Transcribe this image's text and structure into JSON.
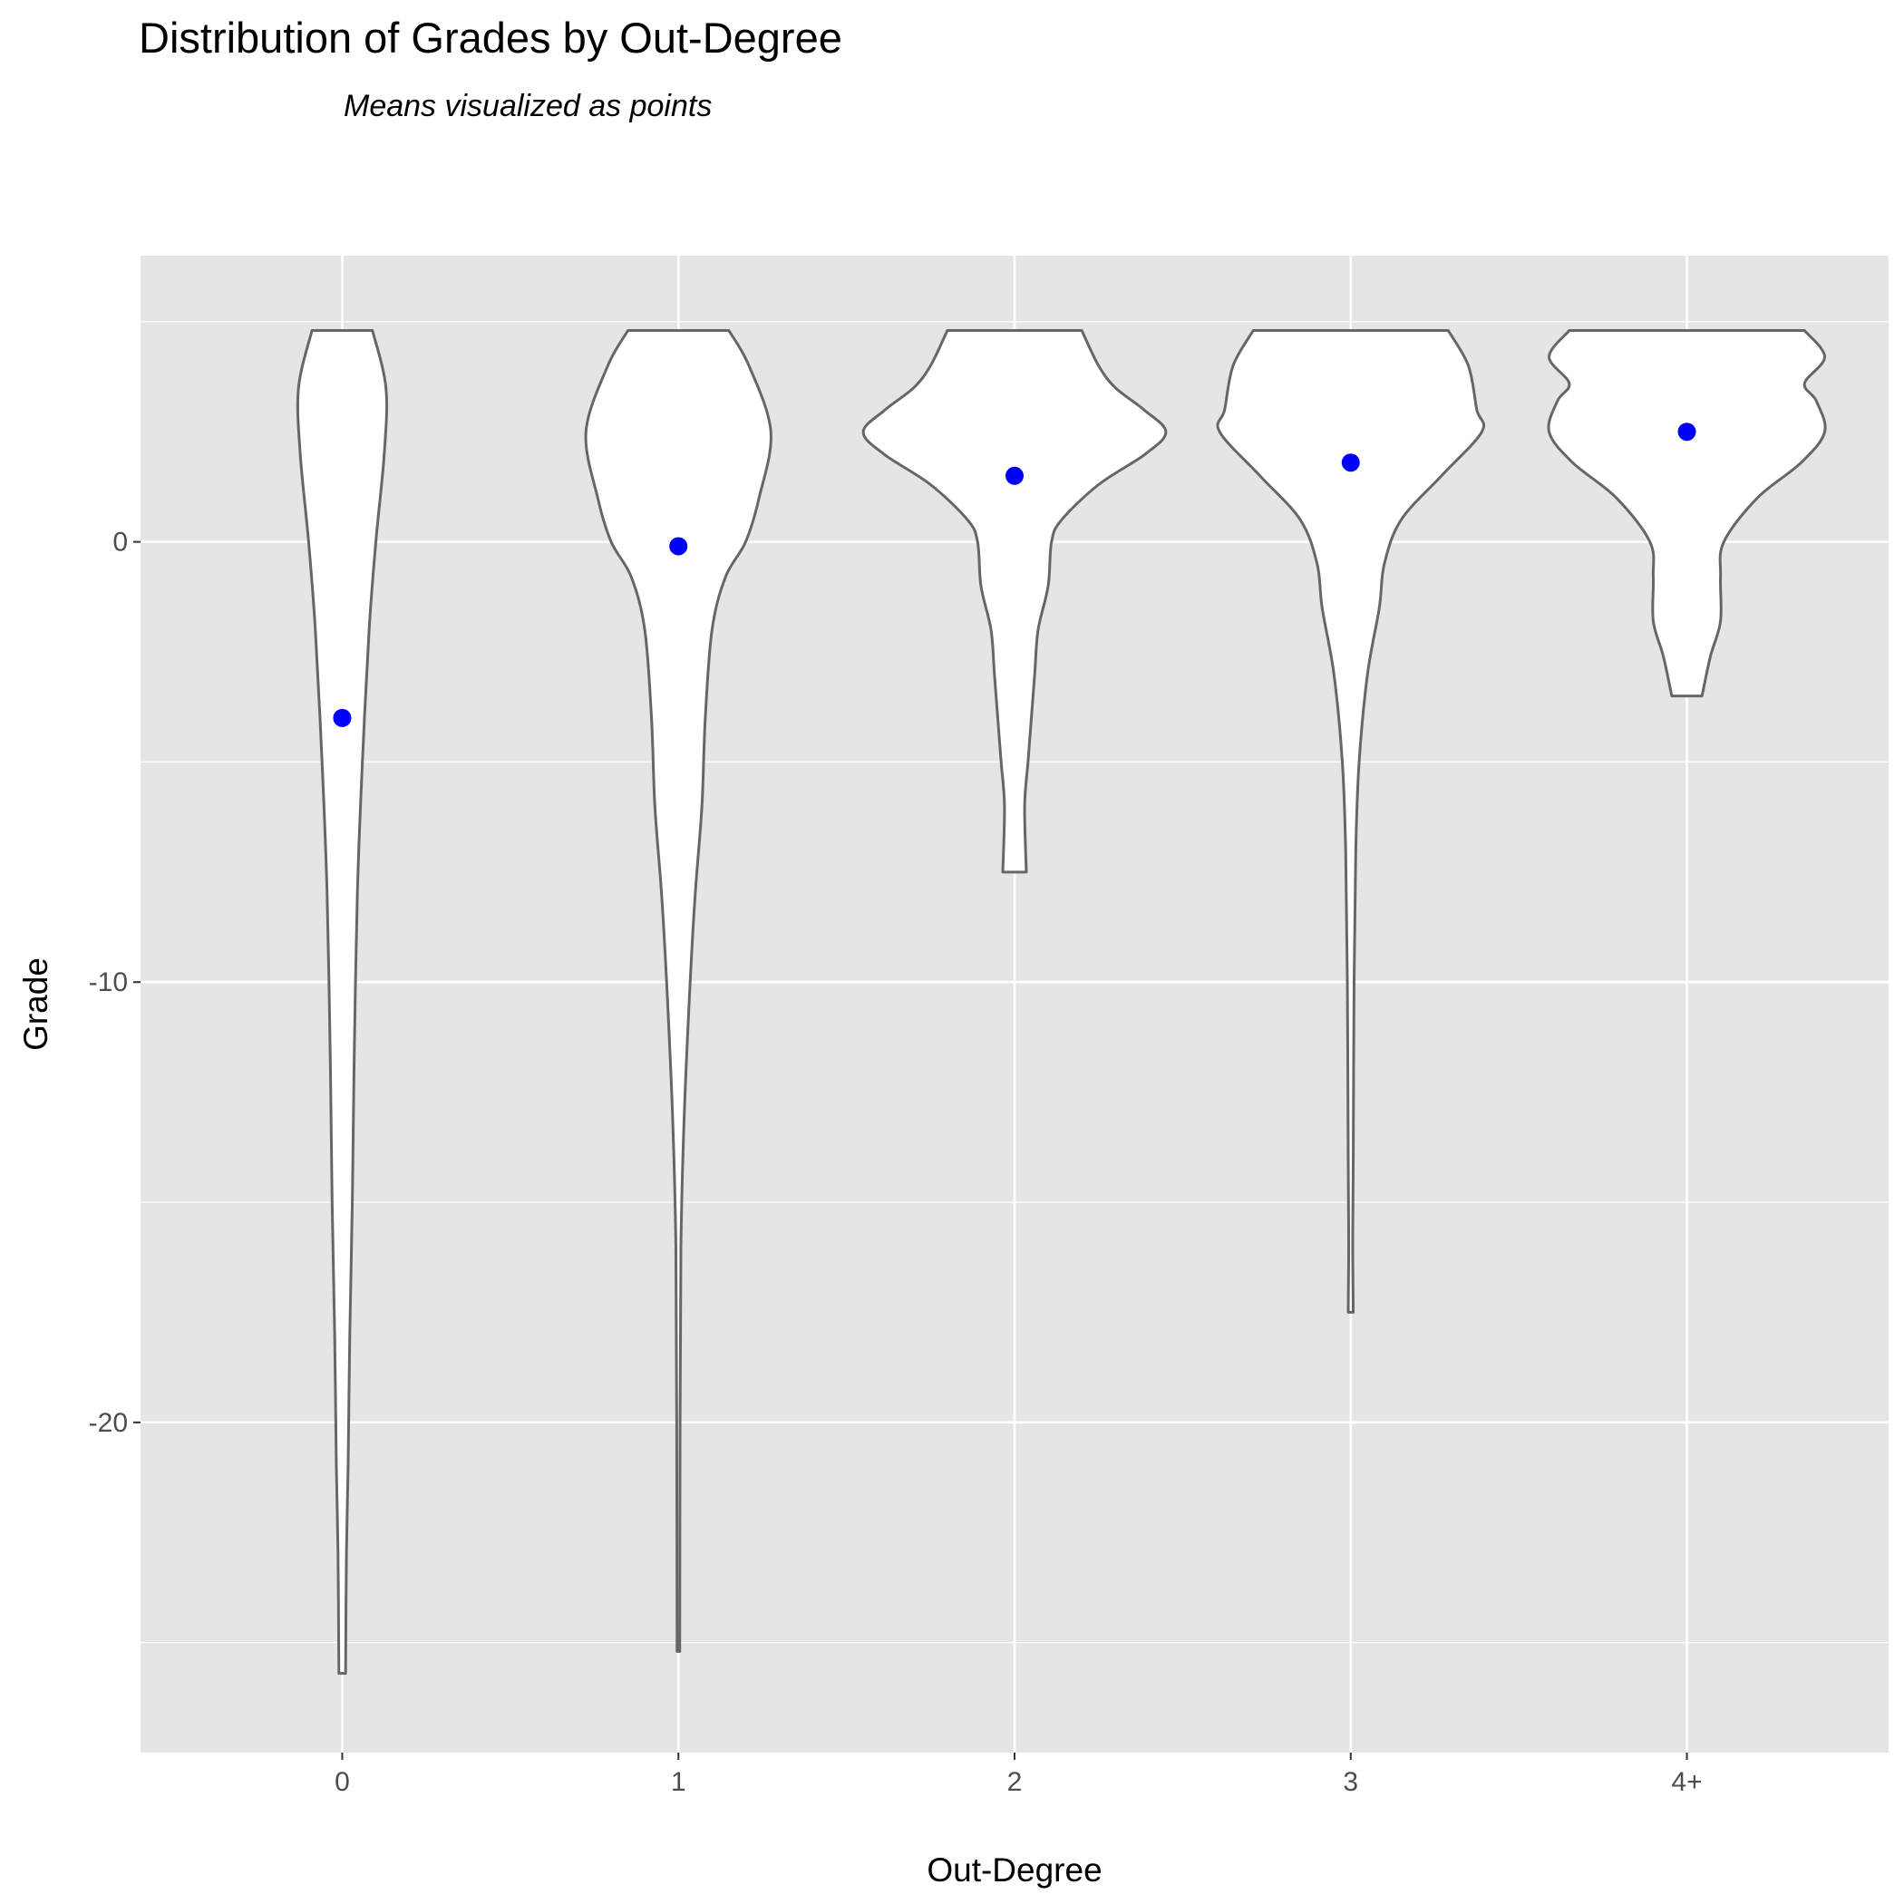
{
  "title": "Distribution of Grades by Out-Degree",
  "subtitle": "Means visualized as points",
  "chart_data": {
    "type": "violin",
    "title": "Distribution of Grades by Out-Degree",
    "subtitle": "Means visualized as points",
    "xlabel": "Out-Degree",
    "ylabel": "Grade",
    "categories": [
      "0",
      "1",
      "2",
      "3",
      "4+"
    ],
    "yticks": [
      0,
      -10,
      -20
    ],
    "ylim": [
      -27.5,
      6.5
    ],
    "grid": true,
    "background": "#e5e5e5",
    "violin_fill": "#ffffff",
    "violin_stroke": "#666666",
    "mean_color": "#0000ff",
    "means": [
      -4.0,
      -0.1,
      1.5,
      1.8,
      2.5
    ],
    "series": [
      {
        "category": "0",
        "y_min": -25.7,
        "y_max": 4.8,
        "mean": -4.0,
        "profile": [
          [
            4.8,
            0.18
          ],
          [
            3.5,
            0.26
          ],
          [
            2.0,
            0.25
          ],
          [
            0,
            0.2
          ],
          [
            -2,
            0.16
          ],
          [
            -5,
            0.12
          ],
          [
            -8,
            0.09
          ],
          [
            -12,
            0.07
          ],
          [
            -15,
            0.06
          ],
          [
            -18,
            0.045
          ],
          [
            -21,
            0.035
          ],
          [
            -23,
            0.025
          ],
          [
            -25.7,
            0.02
          ]
        ]
      },
      {
        "category": "1",
        "y_min": -25.2,
        "y_max": 4.8,
        "mean": -0.1,
        "profile": [
          [
            4.8,
            0.3
          ],
          [
            4.0,
            0.42
          ],
          [
            2.5,
            0.55
          ],
          [
            1.0,
            0.48
          ],
          [
            0,
            0.4
          ],
          [
            -0.8,
            0.28
          ],
          [
            -2,
            0.2
          ],
          [
            -4,
            0.16
          ],
          [
            -6,
            0.14
          ],
          [
            -8,
            0.1
          ],
          [
            -10,
            0.07
          ],
          [
            -13,
            0.035
          ],
          [
            -16,
            0.015
          ],
          [
            -20,
            0.01
          ],
          [
            -25.2,
            0.008
          ]
        ]
      },
      {
        "category": "2",
        "y_min": -7.5,
        "y_max": 4.8,
        "mean": 1.5,
        "profile": [
          [
            4.8,
            0.4
          ],
          [
            4.0,
            0.5
          ],
          [
            3.5,
            0.6
          ],
          [
            3.0,
            0.77
          ],
          [
            2.5,
            0.9
          ],
          [
            2.0,
            0.78
          ],
          [
            1.3,
            0.5
          ],
          [
            0.5,
            0.28
          ],
          [
            0,
            0.22
          ],
          [
            -1,
            0.2
          ],
          [
            -2,
            0.14
          ],
          [
            -3,
            0.12
          ],
          [
            -4,
            0.1
          ],
          [
            -5,
            0.08
          ],
          [
            -6,
            0.06
          ],
          [
            -7.5,
            0.07
          ]
        ]
      },
      {
        "category": "3",
        "y_min": -17.5,
        "y_max": 4.8,
        "mean": 1.8,
        "profile": [
          [
            4.8,
            0.58
          ],
          [
            4.0,
            0.7
          ],
          [
            3.0,
            0.75
          ],
          [
            2.5,
            0.78
          ],
          [
            1.5,
            0.54
          ],
          [
            0.5,
            0.3
          ],
          [
            -0.5,
            0.2
          ],
          [
            -1.5,
            0.17
          ],
          [
            -3,
            0.1
          ],
          [
            -5,
            0.05
          ],
          [
            -7,
            0.03
          ],
          [
            -10,
            0.02
          ],
          [
            -14,
            0.015
          ],
          [
            -16,
            0.012
          ],
          [
            -17.5,
            0.015
          ]
        ]
      },
      {
        "category": "4+",
        "y_min": -3.5,
        "y_max": 4.8,
        "mean": 2.5,
        "profile": [
          [
            4.8,
            0.7
          ],
          [
            4.2,
            0.82
          ],
          [
            3.6,
            0.7
          ],
          [
            3.2,
            0.77
          ],
          [
            2.5,
            0.82
          ],
          [
            1.8,
            0.68
          ],
          [
            1.0,
            0.42
          ],
          [
            0,
            0.22
          ],
          [
            -0.8,
            0.2
          ],
          [
            -1.8,
            0.2
          ],
          [
            -2.6,
            0.14
          ],
          [
            -3.5,
            0.09
          ]
        ]
      }
    ]
  }
}
